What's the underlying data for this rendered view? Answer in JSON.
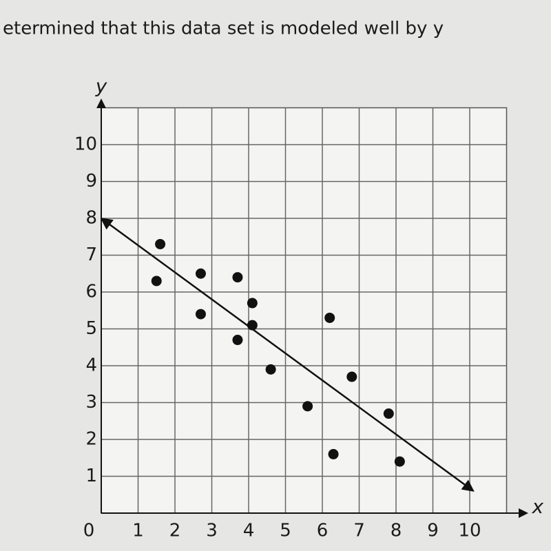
{
  "chart_data": {
    "type": "scatter",
    "title": "etermined that this data set is modeled well by y",
    "x_label": "x",
    "y_label": "y",
    "x": [
      1.6,
      1.5,
      2.7,
      2.7,
      3.7,
      4.1,
      4.1,
      3.7,
      4.6,
      5.6,
      6.2,
      6.8,
      6.3,
      7.8,
      8.1
    ],
    "values": [
      7.3,
      6.3,
      6.5,
      5.4,
      6.4,
      5.7,
      5.1,
      4.7,
      3.9,
      2.9,
      5.3,
      3.7,
      1.6,
      2.7,
      1.4
    ],
    "color": "#111111",
    "trend_line": {
      "x": [
        0,
        10.1
      ],
      "values": [
        8,
        0.6
      ],
      "color": "#111111"
    },
    "xlim": [
      0,
      11
    ],
    "ylim": [
      0,
      11
    ],
    "xticks": [
      0,
      1,
      2,
      3,
      4,
      5,
      6,
      7,
      8,
      9,
      10
    ],
    "yticks": [
      1,
      2,
      3,
      4,
      5,
      6,
      7,
      8,
      9,
      10
    ],
    "grid": true
  }
}
